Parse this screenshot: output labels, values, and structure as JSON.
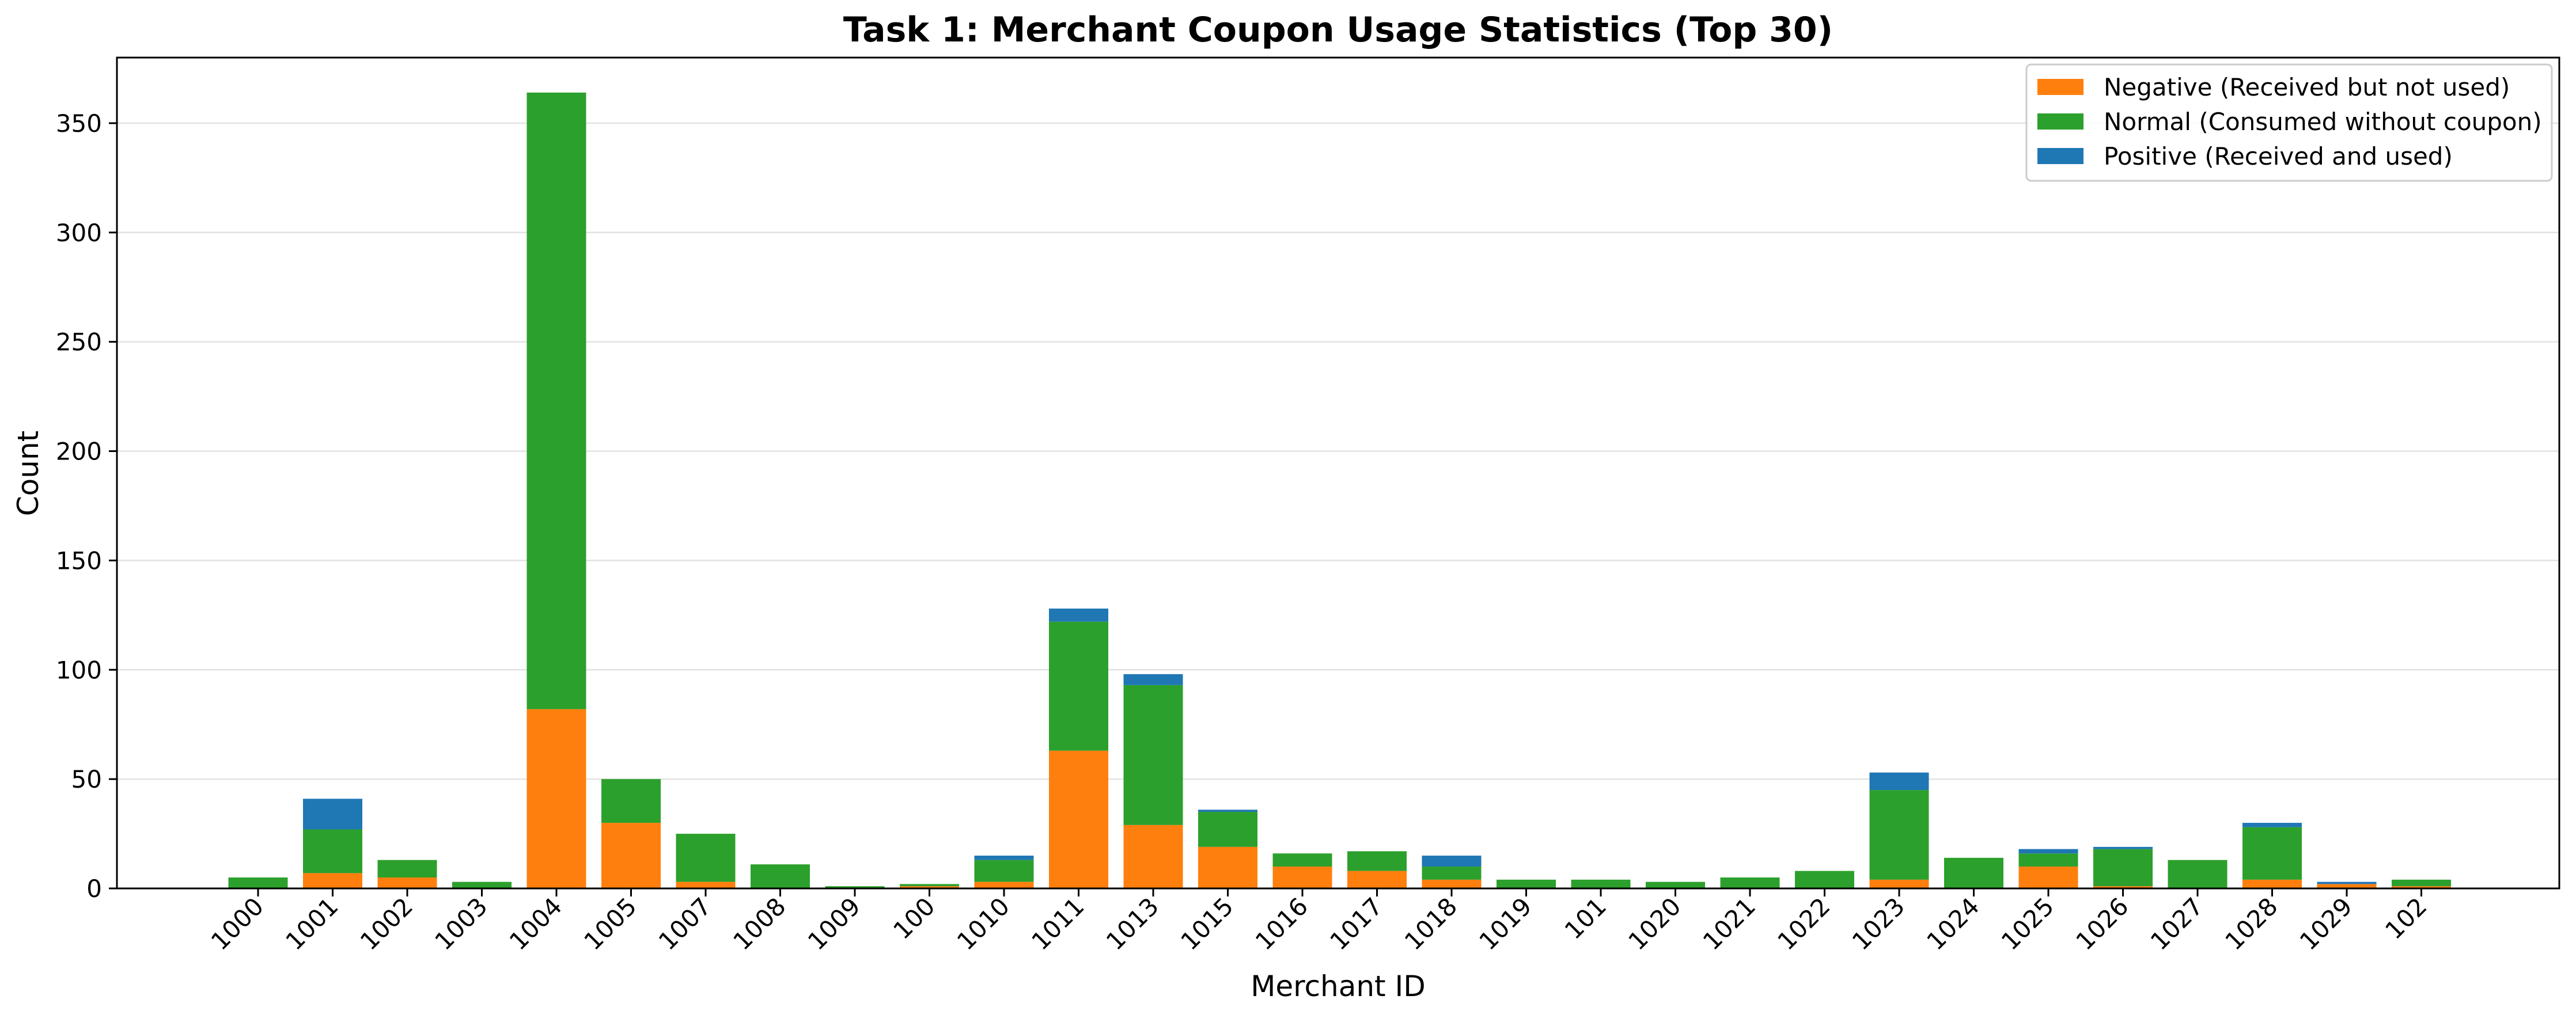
{
  "chart_data": {
    "type": "bar",
    "stacked": true,
    "title": "Task 1: Merchant Coupon Usage Statistics (Top 30)",
    "xlabel": "Merchant ID",
    "ylabel": "Count",
    "ylim": [
      0,
      380
    ],
    "yticks": [
      0,
      50,
      100,
      150,
      200,
      250,
      300,
      350
    ],
    "grid": "horizontal",
    "legend_position": "top-right",
    "categories": [
      "1000",
      "1001",
      "1002",
      "1003",
      "1004",
      "1005",
      "1007",
      "1008",
      "1009",
      "100",
      "1010",
      "1011",
      "1013",
      "1015",
      "1016",
      "1017",
      "1018",
      "1019",
      "101",
      "1020",
      "1021",
      "1022",
      "1023",
      "1024",
      "1025",
      "1026",
      "1027",
      "1028",
      "1029",
      "102"
    ],
    "series": [
      {
        "name": "Negative (Received but not used)",
        "color": "#ff7f0e",
        "values": [
          0,
          7,
          5,
          0,
          82,
          30,
          3,
          0,
          0,
          1,
          3,
          63,
          29,
          19,
          10,
          8,
          4,
          0,
          0,
          0,
          0,
          0,
          4,
          0,
          10,
          1,
          0,
          4,
          2,
          1
        ]
      },
      {
        "name": "Normal (Consumed without coupon)",
        "color": "#2ca02c",
        "values": [
          5,
          20,
          8,
          3,
          282,
          20,
          22,
          11,
          1,
          1,
          10,
          59,
          64,
          16,
          6,
          9,
          6,
          4,
          4,
          3,
          5,
          8,
          41,
          14,
          6,
          17,
          13,
          24,
          0,
          3
        ]
      },
      {
        "name": "Positive (Received and used)",
        "color": "#1f77b4",
        "values": [
          0,
          14,
          0,
          0,
          0,
          0,
          0,
          0,
          0,
          0,
          2,
          6,
          5,
          1,
          0,
          0,
          5,
          0,
          0,
          0,
          0,
          0,
          8,
          0,
          2,
          1,
          0,
          2,
          1,
          0
        ]
      }
    ]
  }
}
